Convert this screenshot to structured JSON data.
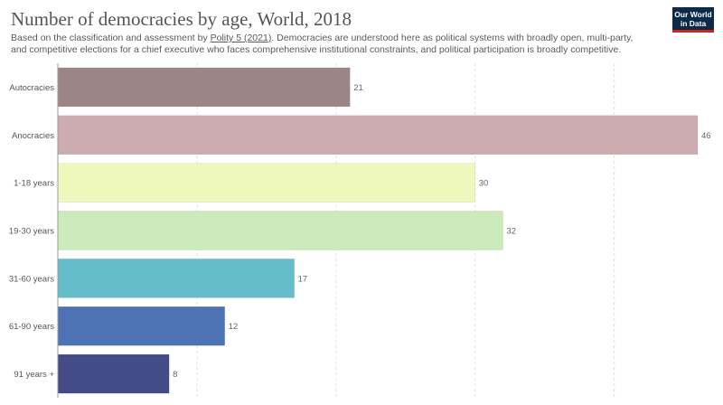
{
  "title": "Number of democracies by age, World, 2018",
  "subtitle": {
    "before": "Based on the classification and assessment by ",
    "source": "Polity 5 (2021)",
    "after": ". Democracies are understood here as political systems with broadly open, multi-party, and competitive elections for a chief executive who faces comprehensive institutional constraints, and political participation is broadly competitive."
  },
  "logo": {
    "line1": "Our World",
    "line2": "in Data"
  },
  "chart_data": {
    "type": "bar",
    "orientation": "horizontal",
    "title": "Number of democracies by age, World, 2018",
    "categories": [
      "Autocracies",
      "Anocracies",
      "1-18 years",
      "19-30 years",
      "31-60 years",
      "61-90 years",
      "91 years +"
    ],
    "values": [
      21,
      46,
      30,
      32,
      17,
      12,
      8
    ],
    "colors": [
      "#9e8585",
      "#ccacaf",
      "#eef8bc",
      "#ccebbd",
      "#64bdc9",
      "#4d73b4",
      "#434c86"
    ],
    "xlim": [
      0,
      46
    ],
    "gridlines": [
      0,
      10,
      20,
      30,
      40
    ],
    "grid": true
  }
}
